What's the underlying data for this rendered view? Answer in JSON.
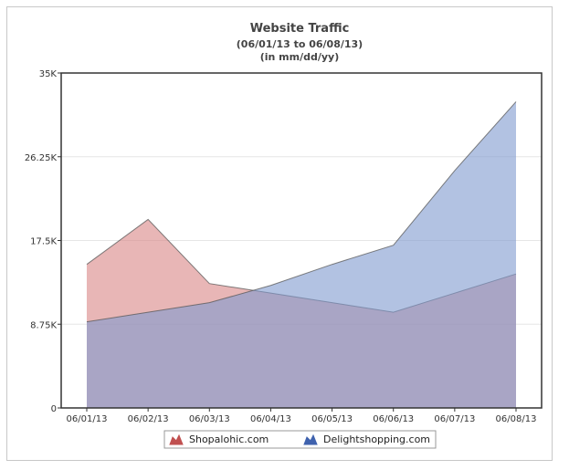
{
  "chart_data": {
    "type": "area",
    "title": "Website Traffic",
    "subtitle_lines": [
      "(06/01/13 to 06/08/13)",
      "(in mm/dd/yy)"
    ],
    "xlabel": "",
    "ylabel": "",
    "categories": [
      "06/01/13",
      "06/02/13",
      "06/03/13",
      "06/04/13",
      "06/05/13",
      "06/06/13",
      "06/07/13",
      "06/08/13"
    ],
    "y_ticks": [
      "0",
      "8.75K",
      "17.5K",
      "26.25K",
      "35K"
    ],
    "ylim": [
      0,
      35000
    ],
    "grid": true,
    "legend_position": "bottom",
    "series": [
      {
        "name": "Shopalohic.com",
        "color": "#c05050",
        "fill": "#d98686",
        "values": [
          15000,
          19700,
          13000,
          12000,
          11000,
          10000,
          12000,
          14000
        ]
      },
      {
        "name": "Delightshopping.com",
        "color": "#3f62ae",
        "fill": "#7f99cf",
        "values": [
          9000,
          10000,
          11000,
          12800,
          15000,
          17000,
          24800,
          32000
        ]
      }
    ]
  }
}
